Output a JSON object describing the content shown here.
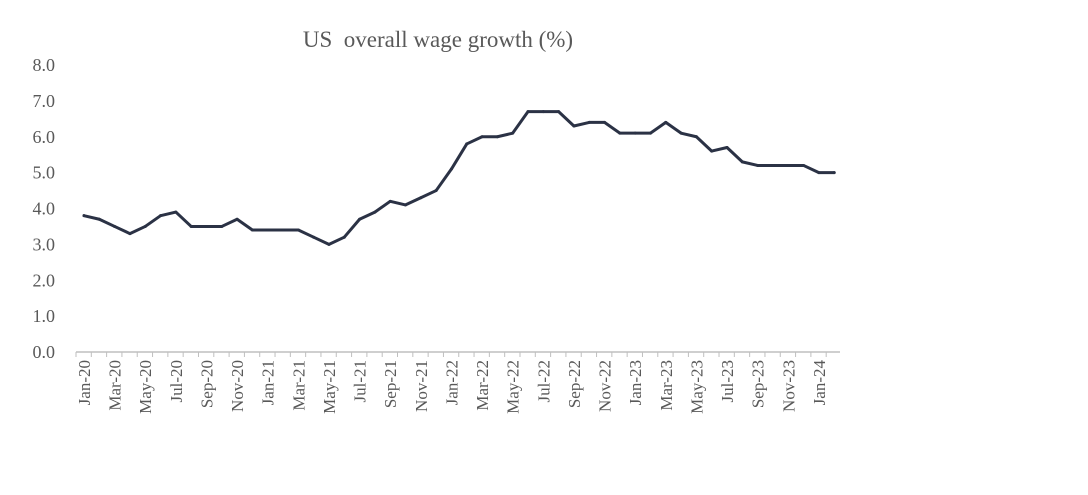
{
  "chart_data": {
    "type": "line",
    "title": "US  overall wage growth (%)",
    "xlabel": "",
    "ylabel": "",
    "ylim": [
      0,
      8
    ],
    "yticks": [
      "0.0",
      "1.0",
      "2.0",
      "3.0",
      "4.0",
      "5.0",
      "6.0",
      "7.0",
      "8.0"
    ],
    "grid": false,
    "legend": "none",
    "x": [
      "Jan-20",
      "Feb-20",
      "Mar-20",
      "Apr-20",
      "May-20",
      "Jun-20",
      "Jul-20",
      "Aug-20",
      "Sep-20",
      "Oct-20",
      "Nov-20",
      "Dec-20",
      "Jan-21",
      "Feb-21",
      "Mar-21",
      "Apr-21",
      "May-21",
      "Jun-21",
      "Jul-21",
      "Aug-21",
      "Sep-21",
      "Oct-21",
      "Nov-21",
      "Dec-21",
      "Jan-22",
      "Feb-22",
      "Mar-22",
      "Apr-22",
      "May-22",
      "Jun-22",
      "Jul-22",
      "Aug-22",
      "Sep-22",
      "Oct-22",
      "Nov-22",
      "Dec-22",
      "Jan-23",
      "Feb-23",
      "Mar-23",
      "Apr-23",
      "May-23",
      "Jun-23",
      "Jul-23",
      "Aug-23",
      "Sep-23",
      "Oct-23",
      "Nov-23",
      "Dec-23",
      "Jan-24",
      "Feb-24"
    ],
    "xtick_labels": [
      "Jan-20",
      "Mar-20",
      "May-20",
      "Jul-20",
      "Sep-20",
      "Nov-20",
      "Jan-21",
      "Mar-21",
      "May-21",
      "Jul-21",
      "Sep-21",
      "Nov-21",
      "Jan-22",
      "Mar-22",
      "May-22",
      "Jul-22",
      "Sep-22",
      "Nov-22",
      "Jan-23",
      "Mar-23",
      "May-23",
      "Jul-23",
      "Sep-23",
      "Nov-23",
      "Jan-24"
    ],
    "series": [
      {
        "values": [
          3.8,
          3.7,
          3.5,
          3.3,
          3.5,
          3.8,
          3.9,
          3.5,
          3.5,
          3.5,
          3.7,
          3.4,
          3.4,
          3.4,
          3.4,
          3.2,
          3.0,
          3.2,
          3.7,
          3.9,
          4.2,
          4.1,
          4.3,
          4.5,
          5.1,
          5.8,
          6.0,
          6.0,
          6.1,
          6.7,
          6.7,
          6.7,
          6.3,
          6.4,
          6.4,
          6.1,
          6.1,
          6.1,
          6.4,
          6.1,
          6.0,
          5.6,
          5.7,
          5.3,
          5.2,
          5.2,
          5.2,
          5.2,
          5.0,
          5.0
        ]
      }
    ],
    "colors": {
      "line": "#2b3245",
      "axis": "#bfbfbf",
      "text": "#595959"
    }
  }
}
